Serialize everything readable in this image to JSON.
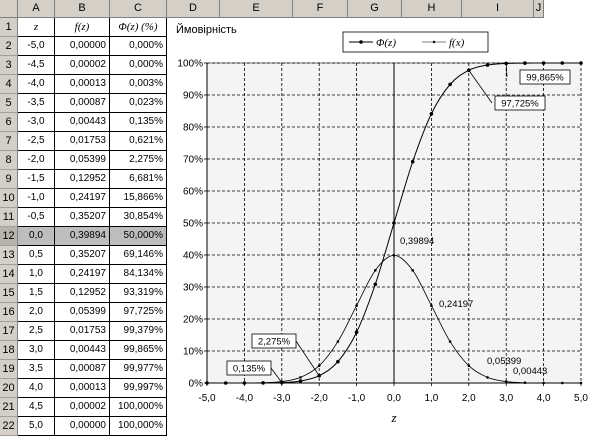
{
  "columns": [
    "A",
    "B",
    "C",
    "D",
    "E",
    "F",
    "G",
    "H",
    "I",
    "J"
  ],
  "rows": [
    "1",
    "2",
    "3",
    "4",
    "5",
    "6",
    "7",
    "8",
    "9",
    "10",
    "11",
    "12",
    "13",
    "14",
    "15",
    "16",
    "17",
    "18",
    "19",
    "20",
    "21",
    "22"
  ],
  "selected_row": "12",
  "table": {
    "headers": [
      "z",
      "f(z)",
      "Φ(z) (%)"
    ],
    "data": [
      [
        "-5,0",
        "0,00000",
        "0,000%"
      ],
      [
        "-4,5",
        "0,00002",
        "0,000%"
      ],
      [
        "-4,0",
        "0,00013",
        "0,003%"
      ],
      [
        "-3,5",
        "0,00087",
        "0,023%"
      ],
      [
        "-3,0",
        "0,00443",
        "0,135%"
      ],
      [
        "-2,5",
        "0,01753",
        "0,621%"
      ],
      [
        "-2,0",
        "0,05399",
        "2,275%"
      ],
      [
        "-1,5",
        "0,12952",
        "6,681%"
      ],
      [
        "-1,0",
        "0,24197",
        "15,866%"
      ],
      [
        "-0,5",
        "0,35207",
        "30,854%"
      ],
      [
        "0,0",
        "0,39894",
        "50,000%"
      ],
      [
        "0,5",
        "0,35207",
        "69,146%"
      ],
      [
        "1,0",
        "0,24197",
        "84,134%"
      ],
      [
        "1,5",
        "0,12952",
        "93,319%"
      ],
      [
        "2,0",
        "0,05399",
        "97,725%"
      ],
      [
        "2,5",
        "0,01753",
        "99,379%"
      ],
      [
        "3,0",
        "0,00443",
        "99,865%"
      ],
      [
        "3,5",
        "0,00087",
        "99,977%"
      ],
      [
        "4,0",
        "0,00013",
        "99,997%"
      ],
      [
        "4,5",
        "0,00002",
        "100,000%"
      ],
      [
        "5,0",
        "0,00000",
        "100,000%"
      ]
    ]
  },
  "chart_data": {
    "type": "line",
    "title": "Ймовірність",
    "xlabel": "z",
    "x": [
      -5.0,
      -4.5,
      -4.0,
      -3.5,
      -3.0,
      -2.5,
      -2.0,
      -1.5,
      -1.0,
      -0.5,
      0.0,
      0.5,
      1.0,
      1.5,
      2.0,
      2.5,
      3.0,
      3.5,
      4.0,
      4.5,
      5.0
    ],
    "xlim": [
      -5,
      5
    ],
    "ylim": [
      0,
      1
    ],
    "xticks": [
      "-5,0",
      "-4,0",
      "-3,0",
      "-2,0",
      "-1,0",
      "0,0",
      "1,0",
      "2,0",
      "3,0",
      "4,0",
      "5,0"
    ],
    "yticks": [
      "0%",
      "10%",
      "20%",
      "30%",
      "40%",
      "50%",
      "60%",
      "70%",
      "80%",
      "90%",
      "100%"
    ],
    "grid": true,
    "legend": "top",
    "series": [
      {
        "name": "Φ(z)",
        "values": [
          0.0,
          0.0,
          3e-05,
          0.00023,
          0.00135,
          0.00621,
          0.02275,
          0.06681,
          0.15866,
          0.30854,
          0.5,
          0.69146,
          0.84134,
          0.93319,
          0.97725,
          0.99379,
          0.99865,
          0.99977,
          0.99997,
          1.0,
          1.0
        ]
      },
      {
        "name": "f(x)",
        "values": [
          0.0,
          2e-05,
          0.00013,
          0.00087,
          0.00443,
          0.01753,
          0.05399,
          0.12952,
          0.24197,
          0.35207,
          0.39894,
          0.35207,
          0.24197,
          0.12952,
          0.05399,
          0.01753,
          0.00443,
          0.00087,
          0.00013,
          2e-05,
          0.0
        ]
      }
    ],
    "annotations": [
      {
        "text": "99,865%",
        "boxed": true
      },
      {
        "text": "97,725%",
        "boxed": true
      },
      {
        "text": "2,275%",
        "boxed": true
      },
      {
        "text": "0,135%",
        "boxed": true
      },
      {
        "text": "0,39894",
        "boxed": false
      },
      {
        "text": "0,24197",
        "boxed": false
      },
      {
        "text": "0,05399",
        "boxed": false
      },
      {
        "text": "0,00443",
        "boxed": false
      }
    ]
  }
}
